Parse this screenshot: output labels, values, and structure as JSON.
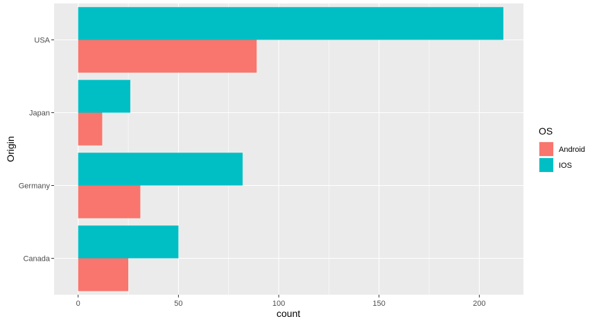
{
  "chart_data": {
    "type": "bar",
    "orientation": "horizontal",
    "position": "dodge",
    "categories": [
      "USA",
      "Japan",
      "Germany",
      "Canada"
    ],
    "series": [
      {
        "name": "Android",
        "values": [
          89,
          12,
          31,
          25
        ],
        "color": "#F8766D"
      },
      {
        "name": "IOS",
        "values": [
          212,
          26,
          82,
          50
        ],
        "color": "#00BFC4"
      }
    ],
    "xlabel": "count",
    "ylabel": "Origin",
    "xlim": [
      -12,
      222
    ],
    "xticks": [
      0,
      50,
      100,
      150,
      200
    ],
    "x_minor_ticks": [
      25,
      75,
      125,
      175
    ],
    "grid": true,
    "panel_background": "#EBEBEB",
    "grid_color": "#FFFFFF",
    "legend": {
      "title": "OS",
      "placement": "right"
    }
  }
}
